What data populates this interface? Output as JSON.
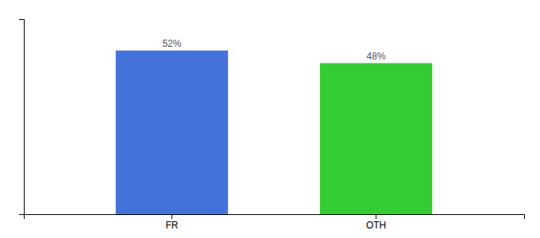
{
  "chart_data": {
    "type": "bar",
    "categories": [
      "FR",
      "OTH"
    ],
    "values": [
      52,
      48
    ],
    "value_labels": [
      "52%",
      "48%"
    ],
    "colors": [
      "#4472DB",
      "#33CC33"
    ],
    "ylim": [
      0,
      62
    ],
    "grid": false,
    "data_labels": true,
    "tick_labels": "x"
  }
}
